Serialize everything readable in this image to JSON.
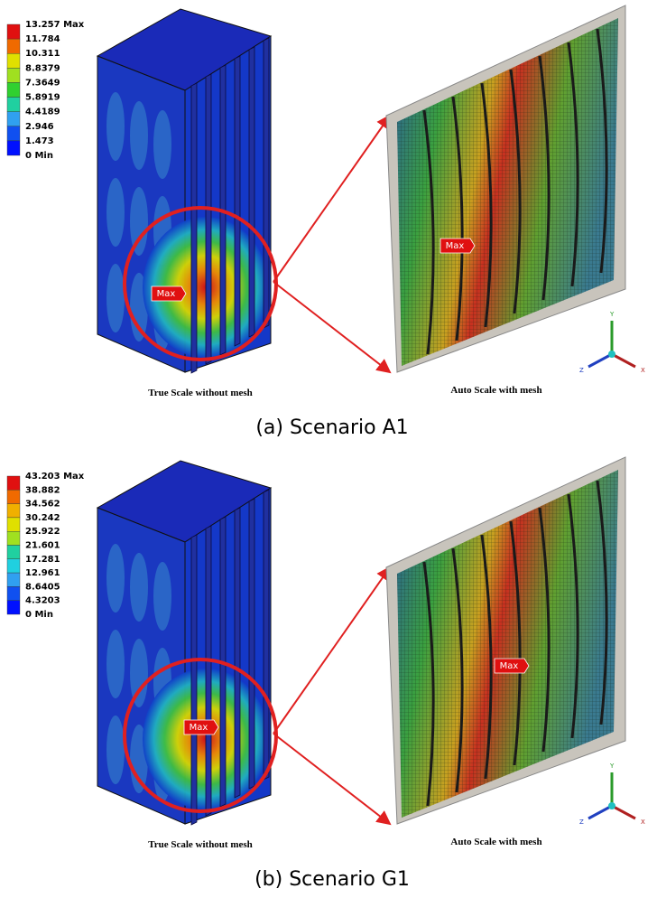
{
  "panels": [
    {
      "legend": [
        "13.257 Max",
        "11.784",
        "10.311",
        "8.8379",
        "7.3649",
        "5.8919",
        "4.4189",
        "2.946",
        "1.473",
        "0 Min"
      ],
      "left_marker": "Max",
      "right_marker": "Max",
      "left_caption": "True Scale without mesh",
      "right_caption": "Auto Scale with mesh",
      "caption": "(a) Scenario A1",
      "axes": [
        "Y",
        "Z",
        "X"
      ]
    },
    {
      "legend": [
        "43.203 Max",
        "38.882",
        "34.562",
        "30.242",
        "25.922",
        "21.601",
        "17.281",
        "12.961",
        "8.6405",
        "4.3203",
        "0 Min"
      ],
      "left_marker": "Max",
      "right_marker": "Max",
      "left_caption": "True Scale without mesh",
      "right_caption": "Auto Scale with mesh",
      "caption": "(b) Scenario G1",
      "axes": [
        "Y",
        "Z",
        "X"
      ]
    }
  ]
}
